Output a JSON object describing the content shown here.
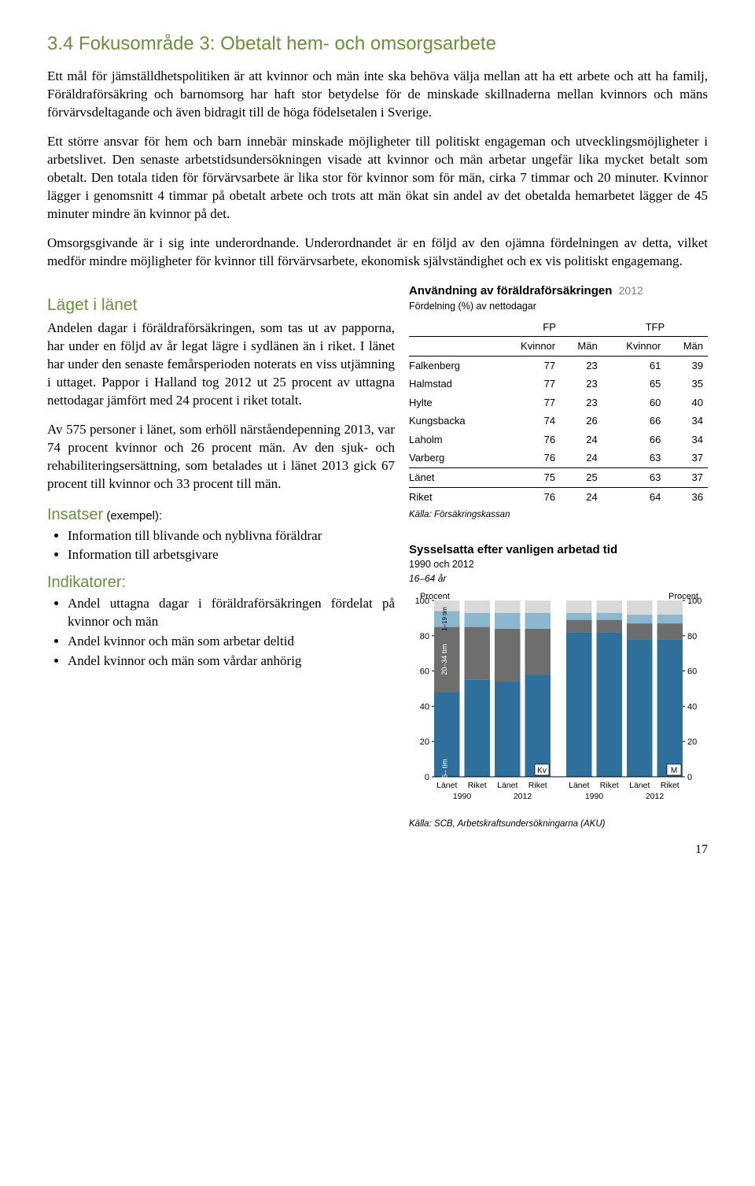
{
  "section": {
    "title": "3.4   Fokusområde 3: Obetalt hem- och omsorgsarbete",
    "para1": "Ett mål för jämställdhetspolitiken är att kvinnor och män inte ska behöva välja mellan att ha ett arbete och att ha familj, Föräldraförsäkring och barnomsorg har haft stor betydelse för de minskade skillnaderna mellan kvinnors och mäns förvärvsdeltagande och även bidragit till de höga födelsetalen i Sverige.",
    "para2": "Ett större ansvar för hem och barn innebär minskade möjligheter till politiskt engageman och utvecklingsmöjligheter i arbetslivet. Den senaste arbetstidsundersökningen visade att kvinnor och män arbetar ungefär lika mycket betalt som obetalt. Den totala tiden för förvärvsarbete är lika stor för kvinnor som för män, cirka 7 timmar och 20 minuter. Kvinnor lägger i genomsnitt 4 timmar på obetalt arbete och trots att män ökat sin andel av det obetalda hemarbetet lägger de 45 minuter mindre än kvinnor på det.",
    "para3": "Omsorgsgivande är i sig inte underordnande. Underordnandet är en följd av den ojämna fördelningen av detta, vilket medför mindre möjligheter för kvinnor till förvärvsarbete, ekonomisk självständighet och ex vis politiskt engagemang."
  },
  "lanet": {
    "title": "Läget i länet",
    "para1": "Andelen dagar i föräldraförsäkringen, som tas ut av papporna, har under en följd av år legat lägre i sydlänen än i riket. I länet har under den senaste femårsperioden noterats en viss utjämning i uttaget. Pappor i Halland tog 2012 ut 25 procent av uttagna nettodagar jämfört med 24 procent i riket totalt.",
    "para2": "Av 575 personer i länet, som erhöll närståendepenning 2013, var 74 procent kvinnor och 26 procent män. Av den sjuk- och rehabiliteringsersättning, som betalades ut i länet 2013 gick 67 procent till kvinnor och 33 procent till män."
  },
  "insatser": {
    "label": "Insatser",
    "suffix": " (exempel):",
    "items": [
      "Information till blivande och nyblivna föräldrar",
      "Information till arbetsgivare"
    ]
  },
  "indikatorer": {
    "label": "Indikatorer:",
    "items": [
      "Andel uttagna dagar i föräldraförsäkringen fördelat på kvinnor och män",
      "Andel kvinnor och män som arbetar deltid",
      "Andel kvinnor och män som vårdar anhörig"
    ]
  },
  "table": {
    "title": "Användning av föräldraförsäkringen",
    "year": "2012",
    "subtitle": "Fördelning (%) av nettodagar",
    "group_labels": [
      "FP",
      "TFP"
    ],
    "col_labels": [
      "Kvinnor",
      "Män",
      "Kvinnor",
      "Män"
    ],
    "rows": [
      {
        "name": "Falkenberg",
        "vals": [
          77,
          23,
          61,
          39
        ]
      },
      {
        "name": "Halmstad",
        "vals": [
          77,
          23,
          65,
          35
        ]
      },
      {
        "name": "Hylte",
        "vals": [
          77,
          23,
          60,
          40
        ]
      },
      {
        "name": "Kungsbacka",
        "vals": [
          74,
          26,
          66,
          34
        ]
      },
      {
        "name": "Laholm",
        "vals": [
          76,
          24,
          66,
          34
        ]
      },
      {
        "name": "Varberg",
        "vals": [
          76,
          24,
          63,
          37
        ]
      }
    ],
    "summary": [
      {
        "name": "Länet",
        "vals": [
          75,
          25,
          63,
          37
        ]
      },
      {
        "name": "Riket",
        "vals": [
          76,
          24,
          64,
          36
        ]
      }
    ],
    "source": "Källa: Försäkringskassan"
  },
  "chart": {
    "title": "Sysselsatta efter vanligen arbetad tid",
    "subtitle": "1990 och 2012",
    "age": "16–64 år",
    "ylabel": "Procent",
    "ylim": [
      0,
      100
    ],
    "ytick_step": 20,
    "x_groups": [
      {
        "top": "Länet",
        "bot": "1990"
      },
      {
        "top": "Riket",
        "bot": ""
      },
      {
        "top": "Länet",
        "bot": "2012"
      },
      {
        "top": "Riket",
        "bot": ""
      },
      {
        "top": "Länet",
        "bot": "1990"
      },
      {
        "top": "Riket",
        "bot": ""
      },
      {
        "top": "Länet",
        "bot": "2012"
      },
      {
        "top": "Riket",
        "bot": ""
      }
    ],
    "series_colors": {
      "cat35": "#2f6f9b",
      "cat1_19": "#8bb8cf",
      "cat20_34": "#6e6e6e",
      "unknown": "#d9d9d9"
    },
    "bars": [
      {
        "c35": 48,
        "c20_34": 37,
        "c1_19": 9,
        "unk": 6
      },
      {
        "c35": 55,
        "c20_34": 30,
        "c1_19": 8,
        "unk": 7
      },
      {
        "c35": 54,
        "c20_34": 30,
        "c1_19": 9,
        "unk": 7
      },
      {
        "c35": 58,
        "c20_34": 26,
        "c1_19": 9,
        "unk": 7
      },
      {
        "c35": 82,
        "c20_34": 7,
        "c1_19": 4,
        "unk": 7
      },
      {
        "c35": 82,
        "c20_34": 7,
        "c1_19": 4,
        "unk": 7
      },
      {
        "c35": 78,
        "c20_34": 9,
        "c1_19": 5,
        "unk": 8
      },
      {
        "c35": 78,
        "c20_34": 9,
        "c1_19": 5,
        "unk": 8
      }
    ],
    "band_labels": {
      "a": "35– tim",
      "b": "20–34 tim",
      "c": "1–19 tim"
    },
    "kv_label": "Kv",
    "m_label": "M",
    "source": "Källa: SCB, Arbetskraftsundersökningarna (AKU)"
  },
  "page_number": "17"
}
